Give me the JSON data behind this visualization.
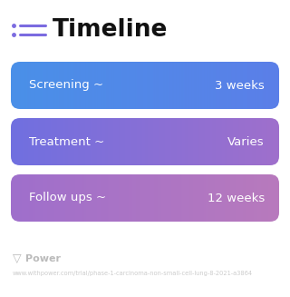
{
  "title": "Timeline",
  "background_color": "#ffffff",
  "rows": [
    {
      "label": "Screening ~",
      "value": "3 weeks",
      "color_left": "#4a90e8",
      "color_right": "#5b7fe8"
    },
    {
      "label": "Treatment ~",
      "value": "Varies",
      "color_left": "#7070e0",
      "color_right": "#9f6fcc"
    },
    {
      "label": "Follow ups ~",
      "value": "12 weeks",
      "color_left": "#9f6fcc",
      "color_right": "#b87abd"
    }
  ],
  "footer_text": "Power",
  "footer_url": "www.withpower.com/trial/phase-1-carcinoma-non-small-cell-lung-8-2021-a3864",
  "icon_color": "#7b6be0",
  "title_fontsize": 19,
  "label_fontsize": 9.5,
  "value_fontsize": 9.5,
  "footer_fontsize": 4.8,
  "footer_power_fontsize": 8,
  "footer_color": "#bbbbbb"
}
